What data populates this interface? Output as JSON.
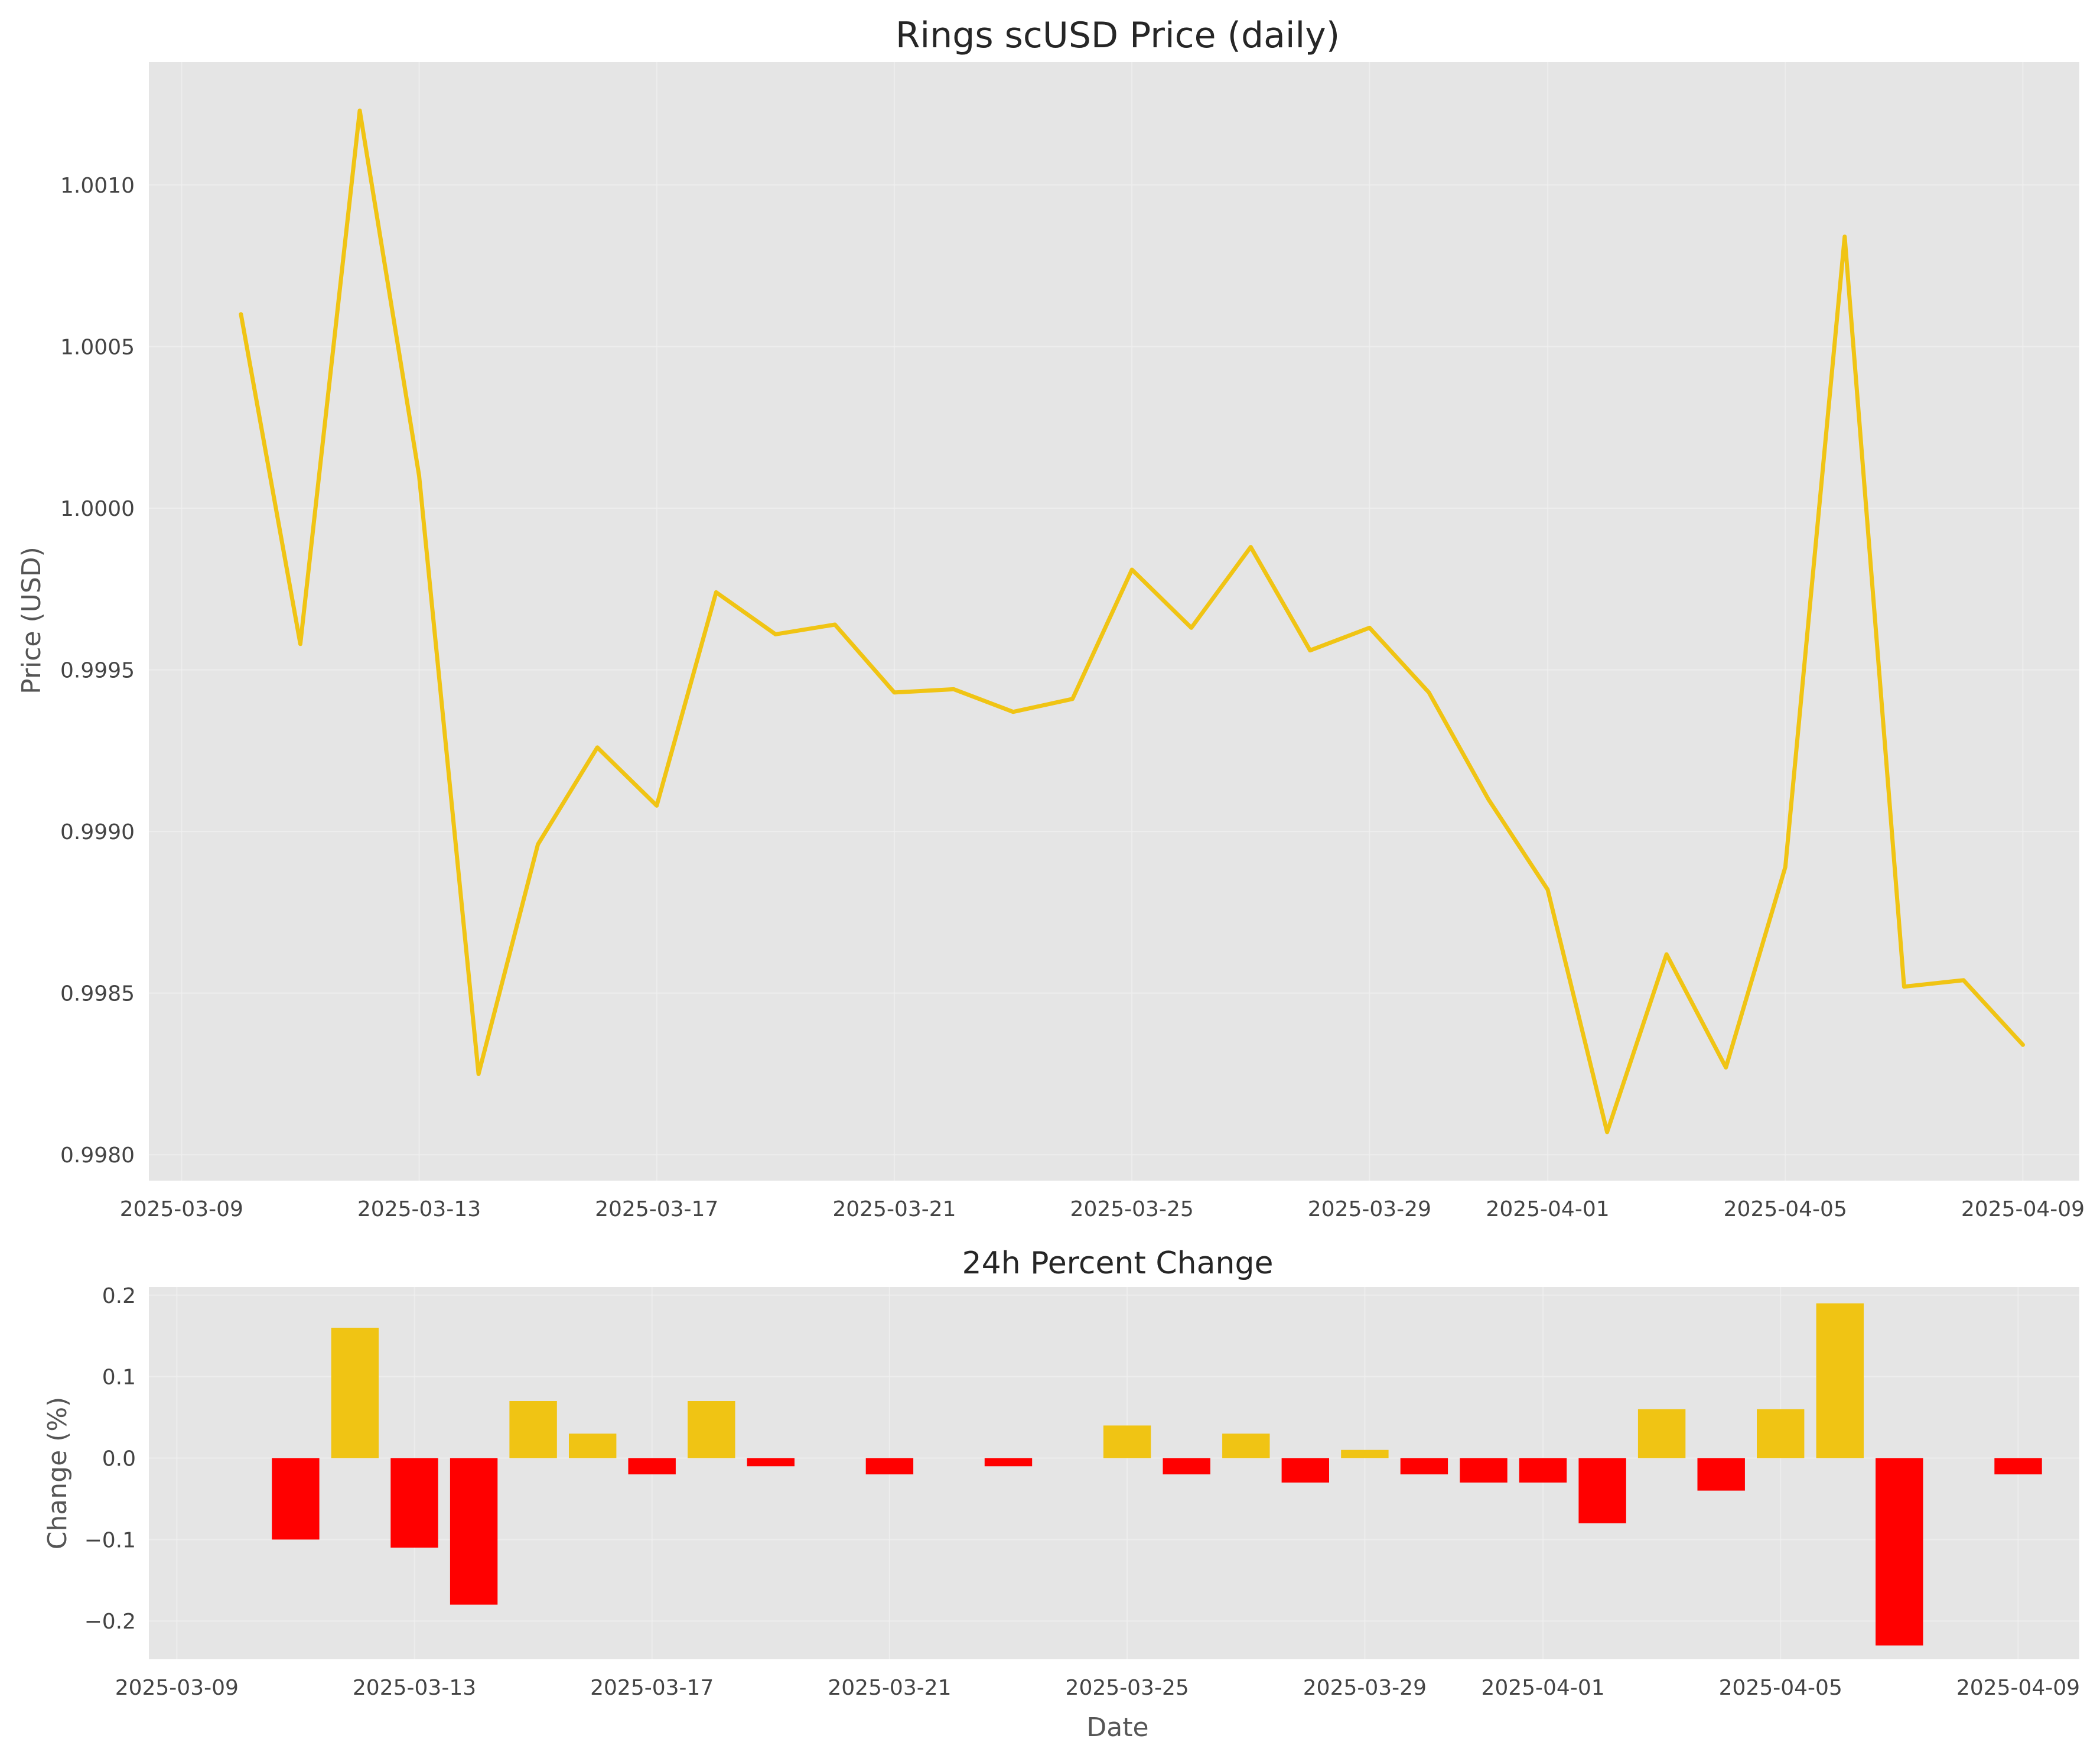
{
  "chart_data": [
    {
      "type": "line",
      "title": "Rings scUSD Price (daily)",
      "xlabel": "",
      "ylabel": "Price (USD)",
      "x": [
        "2025-03-10",
        "2025-03-11",
        "2025-03-12",
        "2025-03-13",
        "2025-03-14",
        "2025-03-15",
        "2025-03-16",
        "2025-03-17",
        "2025-03-18",
        "2025-03-19",
        "2025-03-20",
        "2025-03-21",
        "2025-03-22",
        "2025-03-23",
        "2025-03-24",
        "2025-03-25",
        "2025-03-26",
        "2025-03-27",
        "2025-03-28",
        "2025-03-29",
        "2025-03-30",
        "2025-03-31",
        "2025-04-01",
        "2025-04-02",
        "2025-04-03",
        "2025-04-04",
        "2025-04-05",
        "2025-04-06",
        "2025-04-07",
        "2025-04-08",
        "2025-04-09"
      ],
      "series": [
        {
          "values": [
            1.0006,
            0.99958,
            1.00123,
            1.0001,
            0.99825,
            0.99896,
            0.99926,
            0.99908,
            0.99974,
            0.99961,
            0.99964,
            0.99943,
            0.99944,
            0.99937,
            0.99941,
            0.99981,
            0.99963,
            0.99988,
            0.99956,
            0.99963,
            0.99943,
            0.9991,
            0.99882,
            0.99807,
            0.99862,
            0.99827,
            0.99889,
            1.00084,
            0.99852,
            0.99854,
            0.99834
          ],
          "color": "#f0c414"
        }
      ],
      "x_ticks": [
        "2025-03-09",
        "2025-03-13",
        "2025-03-17",
        "2025-03-21",
        "2025-03-25",
        "2025-03-29",
        "2025-04-01",
        "2025-04-05",
        "2025-04-09"
      ],
      "y_ticks": [
        "0.9980",
        "0.9985",
        "0.9990",
        "0.9995",
        "1.0000",
        "1.0005",
        "1.0010"
      ],
      "ylim": [
        0.99792,
        1.00138
      ],
      "grid": true
    },
    {
      "type": "bar",
      "title": "24h Percent Change",
      "xlabel": "Date",
      "ylabel": "Change (%)",
      "x": [
        "2025-03-11",
        "2025-03-12",
        "2025-03-13",
        "2025-03-14",
        "2025-03-15",
        "2025-03-16",
        "2025-03-17",
        "2025-03-18",
        "2025-03-19",
        "2025-03-20",
        "2025-03-21",
        "2025-03-22",
        "2025-03-23",
        "2025-03-24",
        "2025-03-25",
        "2025-03-26",
        "2025-03-27",
        "2025-03-28",
        "2025-03-29",
        "2025-03-30",
        "2025-03-31",
        "2025-04-01",
        "2025-04-02",
        "2025-04-03",
        "2025-04-04",
        "2025-04-05",
        "2025-04-06",
        "2025-04-07",
        "2025-04-08",
        "2025-04-09"
      ],
      "values": [
        -0.1,
        0.16,
        -0.11,
        -0.18,
        0.07,
        0.03,
        -0.02,
        0.07,
        -0.01,
        0.0,
        -0.02,
        0.0,
        -0.01,
        0.0,
        0.04,
        -0.02,
        0.03,
        -0.03,
        0.01,
        -0.02,
        -0.03,
        -0.03,
        -0.08,
        0.06,
        -0.04,
        0.06,
        0.19,
        -0.23,
        0.0,
        -0.02
      ],
      "positive_color": "#f0c414",
      "negative_color": "#ff0000",
      "x_ticks": [
        "2025-03-09",
        "2025-03-13",
        "2025-03-17",
        "2025-03-21",
        "2025-03-25",
        "2025-03-29",
        "2025-04-01",
        "2025-04-05",
        "2025-04-09"
      ],
      "y_ticks": [
        "−0.2",
        "−0.1",
        "0.0",
        "0.1",
        "0.2"
      ],
      "ylim": [
        -0.247,
        0.21
      ],
      "grid": true
    }
  ]
}
